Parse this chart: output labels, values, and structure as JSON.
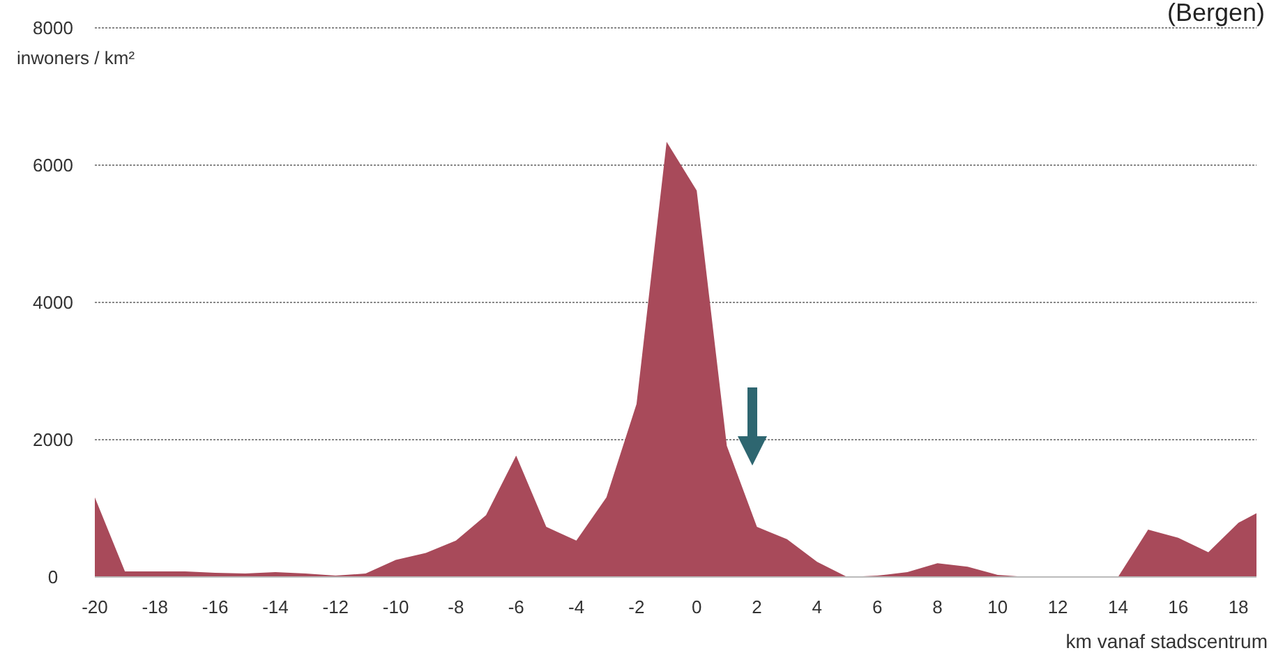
{
  "chart_data": {
    "type": "area",
    "title": "(Bergen)",
    "ylabel": "inwoners / km²",
    "xlabel": "km vanaf stadscentrum",
    "x": [
      -20,
      -19,
      -18,
      -17,
      -16,
      -15,
      -14,
      -13,
      -12,
      -11,
      -10,
      -9,
      -8,
      -7,
      -6,
      -5,
      -4,
      -3,
      -2,
      -1,
      0,
      1,
      2,
      3,
      4,
      5,
      6,
      7,
      8,
      9,
      10,
      11,
      12,
      13,
      14,
      15,
      16,
      17,
      18,
      18.6
    ],
    "series": [
      {
        "color": "#a84a5a",
        "values": [
          1160,
          80,
          80,
          80,
          60,
          50,
          70,
          50,
          20,
          50,
          250,
          350,
          530,
          900,
          1770,
          730,
          530,
          1160,
          2520,
          6340,
          5630,
          1910,
          730,
          550,
          220,
          0,
          20,
          70,
          200,
          150,
          30,
          0,
          0,
          0,
          0,
          690,
          570,
          360,
          790,
          930
        ]
      }
    ],
    "xlim": [
      -20,
      18.6
    ],
    "xticks": [
      -20,
      -18,
      -16,
      -14,
      -12,
      -10,
      -8,
      -6,
      -4,
      -2,
      0,
      2,
      4,
      6,
      8,
      10,
      12,
      14,
      16,
      18
    ],
    "ylim": [
      0,
      8000
    ],
    "yticks": [
      0,
      2000,
      4000,
      6000,
      8000
    ],
    "grid": "y"
  }
}
